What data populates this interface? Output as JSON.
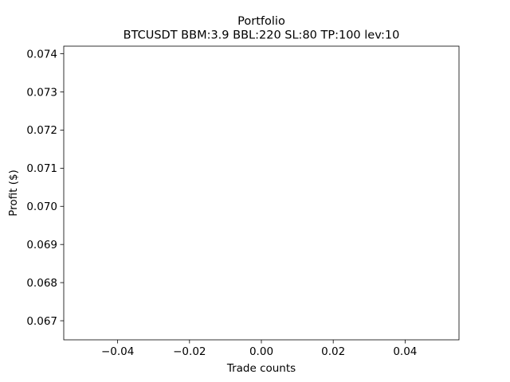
{
  "chart_data": {
    "type": "line",
    "title": "Portfolio",
    "subtitle": "BTCUSDT BBM:3.9 BBL:220 SL:80 TP:100 lev:10",
    "xlabel": "Trade counts",
    "ylabel": "Profit ($)",
    "xlim": [
      -0.055,
      0.055
    ],
    "ylim": [
      0.0665,
      0.0742
    ],
    "xticks": [
      -0.04,
      -0.02,
      0.0,
      0.02,
      0.04
    ],
    "xtick_labels": [
      "−0.04",
      "−0.02",
      "0.00",
      "0.02",
      "0.04"
    ],
    "yticks": [
      0.067,
      0.068,
      0.069,
      0.07,
      0.071,
      0.072,
      0.073,
      0.074
    ],
    "ytick_labels": [
      "0.067",
      "0.068",
      "0.069",
      "0.070",
      "0.071",
      "0.072",
      "0.073",
      "0.074"
    ],
    "grid": false,
    "legend": "none",
    "series": [
      {
        "x": [],
        "y": []
      }
    ]
  }
}
